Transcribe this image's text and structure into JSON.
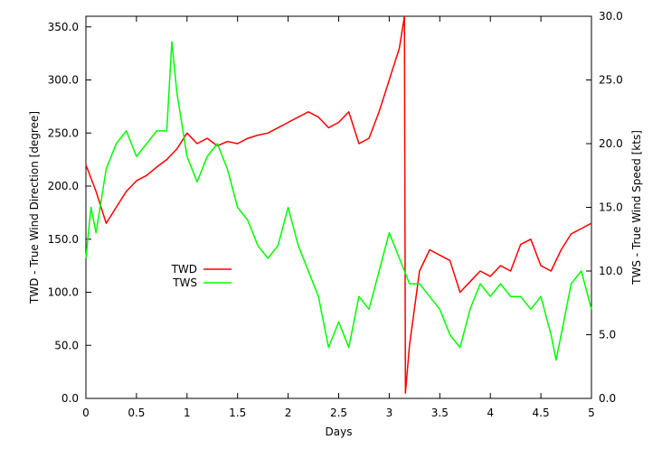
{
  "chart_data": {
    "type": "line",
    "xlabel": "Days",
    "ylabel_left": "TWD - True Wind Direction [degree]",
    "ylabel_right": "TWS - True Wind Speed [kts]",
    "xlim": [
      0,
      5
    ],
    "ylim_left": [
      0,
      360
    ],
    "ylim_right": [
      0,
      30
    ],
    "x_ticks": [
      "0",
      "0.5",
      "1",
      "1.5",
      "2",
      "2.5",
      "3",
      "3.5",
      "4",
      "4.5",
      "5"
    ],
    "y_left_ticks": [
      "0.0",
      "50.0",
      "100.0",
      "150.0",
      "200.0",
      "250.0",
      "300.0",
      "350.0"
    ],
    "y_right_ticks": [
      "0.0",
      "5.0",
      "10.0",
      "15.0",
      "20.0",
      "25.0",
      "30.0"
    ],
    "grid": false,
    "legend_position": "center-left",
    "legend": [
      "TWD",
      "TWS"
    ],
    "colors": {
      "TWD": "#ff0000",
      "TWS": "#00ff00"
    },
    "series": [
      {
        "name": "TWD",
        "axis": "left",
        "x": [
          0,
          0.1,
          0.2,
          0.3,
          0.4,
          0.5,
          0.6,
          0.7,
          0.8,
          0.9,
          1.0,
          1.1,
          1.2,
          1.3,
          1.4,
          1.5,
          1.6,
          1.7,
          1.8,
          1.9,
          2.0,
          2.1,
          2.2,
          2.3,
          2.4,
          2.5,
          2.6,
          2.7,
          2.8,
          2.9,
          3.0,
          3.1,
          3.15,
          3.16,
          3.2,
          3.3,
          3.4,
          3.5,
          3.6,
          3.7,
          3.8,
          3.9,
          4.0,
          4.1,
          4.2,
          4.3,
          4.4,
          4.5,
          4.6,
          4.7,
          4.8,
          4.9,
          5.0
        ],
        "values": [
          220,
          195,
          165,
          180,
          195,
          205,
          210,
          218,
          225,
          235,
          250,
          240,
          245,
          238,
          242,
          240,
          245,
          248,
          250,
          255,
          260,
          265,
          270,
          265,
          255,
          260,
          270,
          240,
          245,
          270,
          300,
          330,
          360,
          5,
          50,
          120,
          140,
          135,
          130,
          100,
          110,
          120,
          115,
          125,
          120,
          145,
          150,
          125,
          120,
          140,
          155,
          160,
          165
        ]
      },
      {
        "name": "TWS",
        "axis": "right",
        "x": [
          0,
          0.05,
          0.1,
          0.2,
          0.3,
          0.4,
          0.5,
          0.6,
          0.7,
          0.8,
          0.85,
          0.9,
          1.0,
          1.1,
          1.2,
          1.3,
          1.4,
          1.5,
          1.6,
          1.7,
          1.8,
          1.9,
          2.0,
          2.1,
          2.2,
          2.3,
          2.4,
          2.5,
          2.6,
          2.7,
          2.8,
          2.9,
          3.0,
          3.1,
          3.2,
          3.3,
          3.4,
          3.5,
          3.6,
          3.7,
          3.8,
          3.9,
          4.0,
          4.1,
          4.2,
          4.3,
          4.4,
          4.5,
          4.6,
          4.65,
          4.7,
          4.8,
          4.9,
          5.0
        ],
        "values": [
          11,
          15,
          13,
          18,
          20,
          21,
          19,
          20,
          21,
          21,
          28,
          24,
          19,
          17,
          19,
          20,
          18,
          15,
          14,
          12,
          11,
          12,
          15,
          12,
          10,
          8,
          4,
          6,
          4,
          8,
          7,
          10,
          13,
          11,
          9,
          9,
          8,
          7,
          5,
          4,
          7,
          9,
          8,
          9,
          8,
          8,
          7,
          8,
          5,
          3,
          5,
          9,
          10,
          7
        ]
      }
    ]
  }
}
